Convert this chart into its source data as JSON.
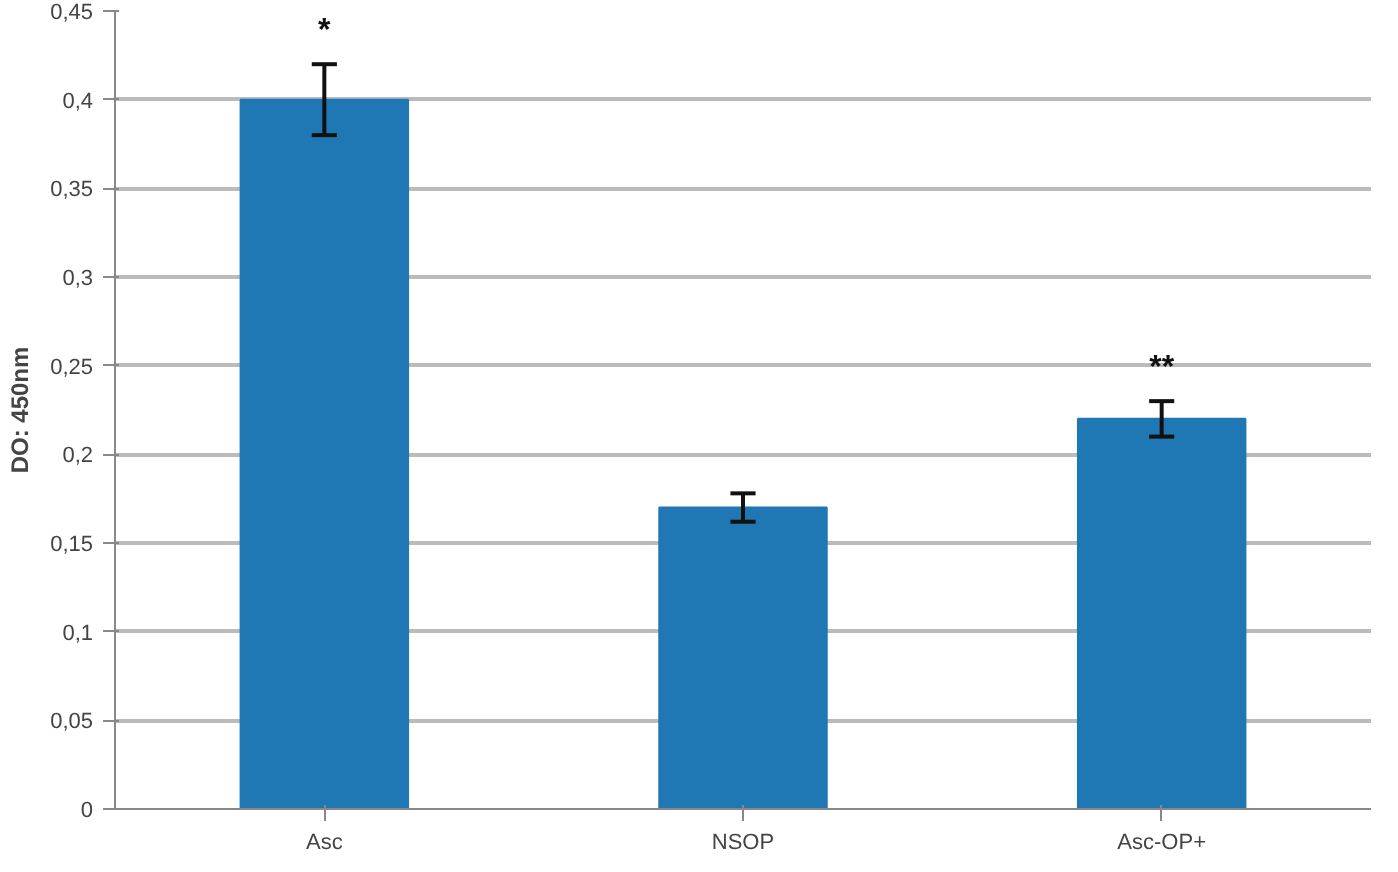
{
  "chart_data": {
    "type": "bar",
    "ylabel": "DO: 450nm",
    "categories": [
      "Asc",
      "NSOP",
      "Asc-OP+"
    ],
    "values": [
      0.4,
      0.17,
      0.22
    ],
    "errors": [
      0.02,
      0.008,
      0.01
    ],
    "color": "#1f77b4",
    "ylim": [
      0,
      0.45
    ],
    "yticks": [
      {
        "value": 0,
        "label": "0"
      },
      {
        "value": 0.05,
        "label": "0,05"
      },
      {
        "value": 0.1,
        "label": "0,1"
      },
      {
        "value": 0.15,
        "label": "0,15"
      },
      {
        "value": 0.2,
        "label": "0,2"
      },
      {
        "value": 0.25,
        "label": "0,25"
      },
      {
        "value": 0.3,
        "label": "0,3"
      },
      {
        "value": 0.35,
        "label": "0,35"
      },
      {
        "value": 0.4,
        "label": "0,4"
      },
      {
        "value": 0.45,
        "label": "0,45"
      }
    ],
    "grid": "y",
    "annotations": [
      {
        "text": "*",
        "x": "Asc",
        "y": 0.42
      },
      {
        "text": "**",
        "x": "Asc-OP+",
        "y": 0.23
      }
    ]
  }
}
